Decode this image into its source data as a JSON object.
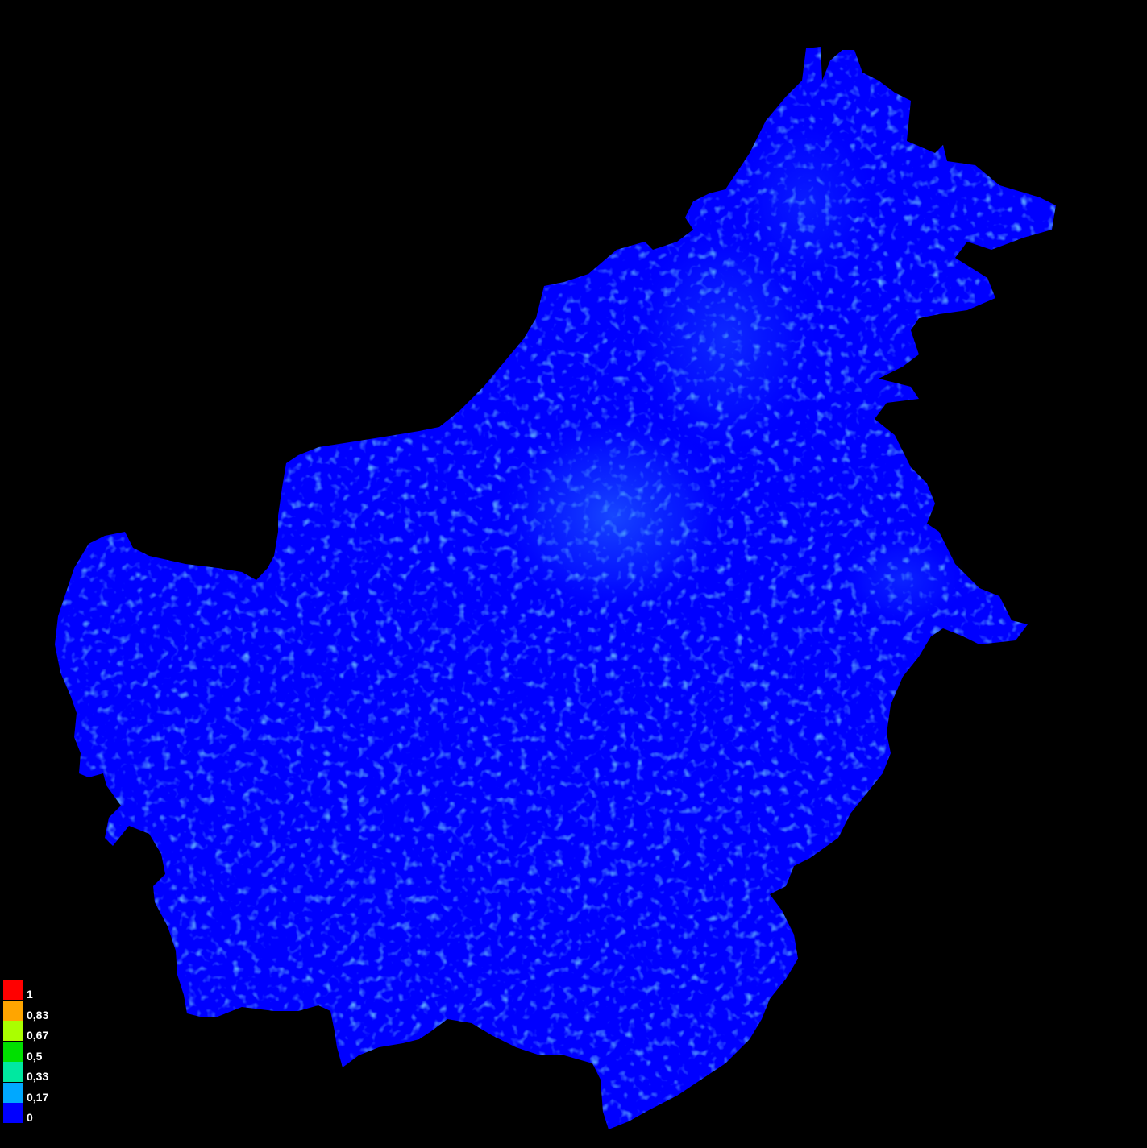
{
  "map": {
    "background_color": "#000000",
    "land_base_color": "#0000ff",
    "highlight_color": "#1e6cf0"
  },
  "legend": {
    "items": [
      {
        "label": "1",
        "color": "#ff0000"
      },
      {
        "label": "0,83",
        "color": "#ffa500"
      },
      {
        "label": "0,67",
        "color": "#aaff00"
      },
      {
        "label": "0,5",
        "color": "#00e000"
      },
      {
        "label": "0,33",
        "color": "#00e8a0"
      },
      {
        "label": "0,17",
        "color": "#00a8ff"
      },
      {
        "label": "0",
        "color": "#0000ff"
      }
    ]
  }
}
